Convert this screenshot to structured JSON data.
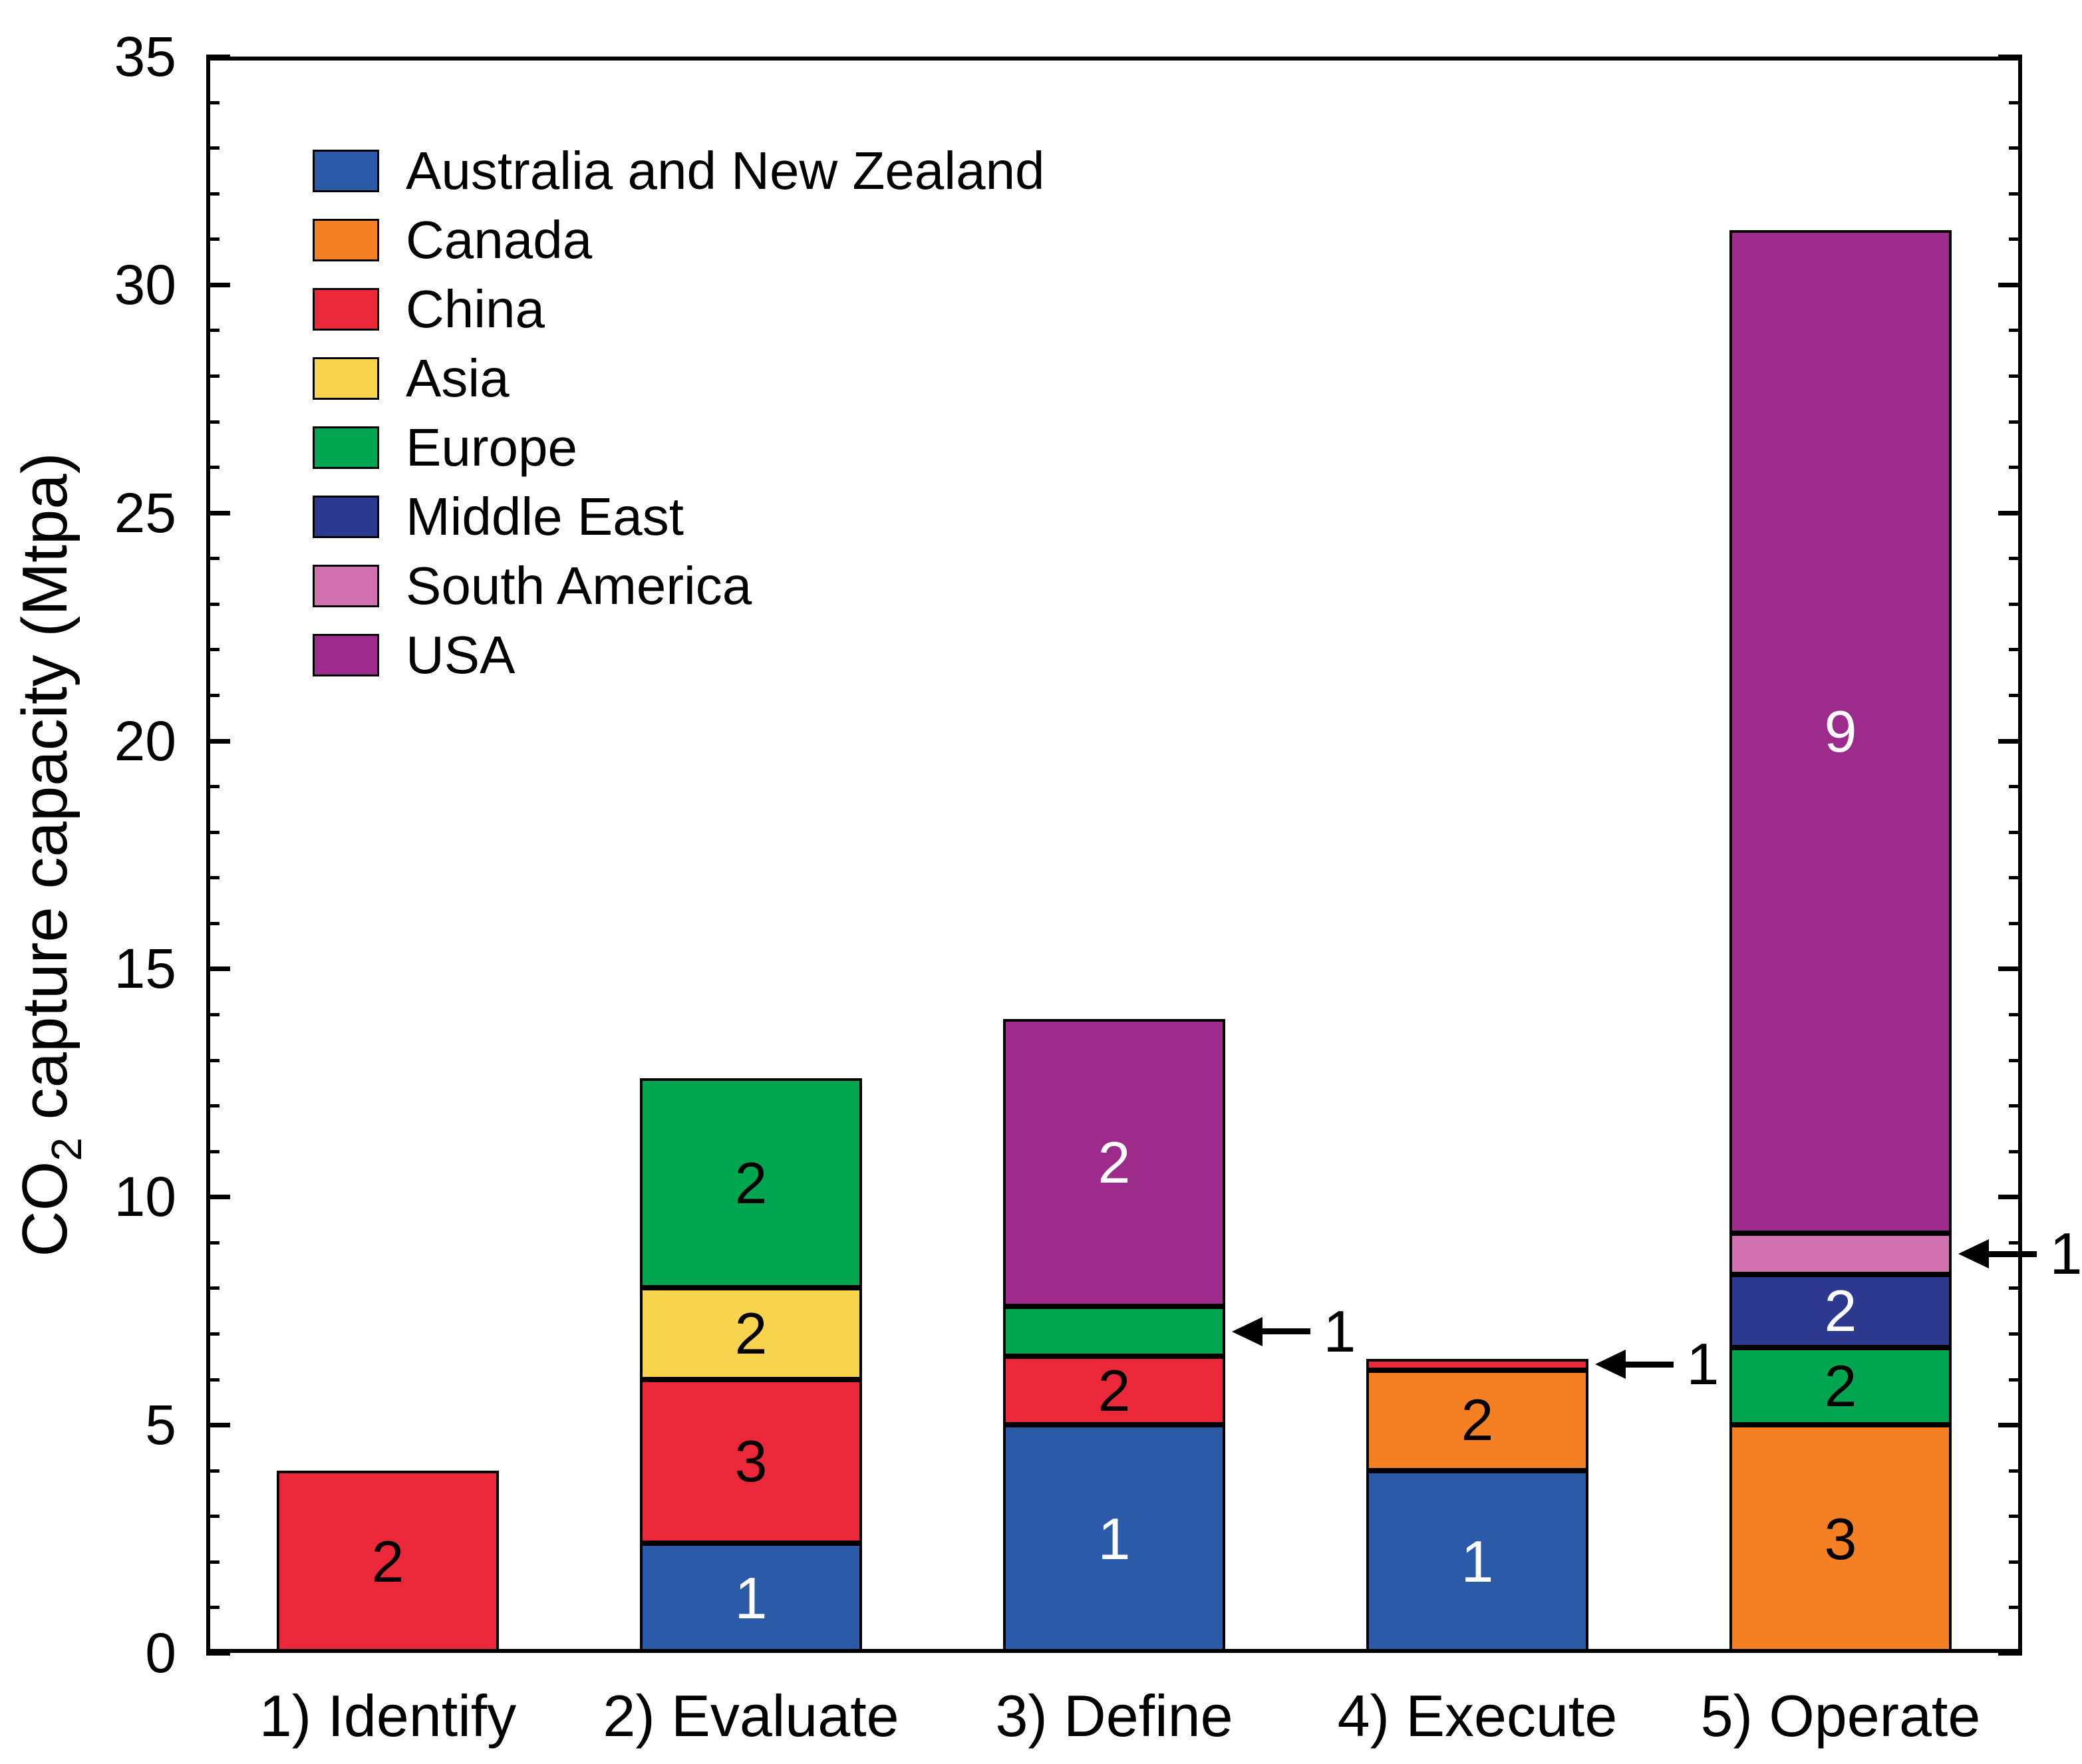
{
  "figure": {
    "background": "#ffffff",
    "axis_color": "#000000",
    "ylabel": {
      "pre": "CO",
      "sub": "2",
      "post": " capture capacity (Mtpa)"
    }
  },
  "chart_data": {
    "type": "bar",
    "stacked": true,
    "title": "",
    "xlabel": "",
    "ylabel": "CO2 capture capacity (Mtpa)",
    "ylim": [
      0,
      35
    ],
    "yticks": [
      0,
      5,
      10,
      15,
      20,
      25,
      30,
      35
    ],
    "minor_tick_step": 1,
    "grid": false,
    "legend_position": "top-left-inside",
    "categories": [
      "1) Identify",
      "2) Evaluate",
      "3) Define",
      "4) Execute",
      "5) Operate"
    ],
    "series": [
      {
        "name": "Australia and New Zealand",
        "color": "#2B5BA8",
        "label_color": "#ffffff",
        "values": [
          0,
          2.4,
          5.0,
          4.0,
          0
        ],
        "counts": [
          null,
          1,
          1,
          1,
          null
        ]
      },
      {
        "name": "Canada",
        "color": "#F58023",
        "label_color": "#000000",
        "values": [
          0,
          0,
          0,
          2.2,
          5.0
        ],
        "counts": [
          null,
          null,
          null,
          2,
          3
        ]
      },
      {
        "name": "China",
        "color": "#EA2839",
        "label_color": "#000000",
        "values": [
          4.0,
          3.6,
          1.5,
          0.25,
          0
        ],
        "counts": [
          2,
          3,
          2,
          1,
          null
        ]
      },
      {
        "name": "Asia",
        "color": "#F8D44C",
        "label_color": "#000000",
        "values": [
          0,
          2.0,
          0,
          0,
          0
        ],
        "counts": [
          null,
          2,
          null,
          null,
          null
        ]
      },
      {
        "name": "Europe",
        "color": "#00A550",
        "label_color": "#000000",
        "values": [
          0,
          4.6,
          1.1,
          0,
          1.7
        ],
        "counts": [
          null,
          2,
          1,
          null,
          2
        ]
      },
      {
        "name": "Middle East",
        "color": "#2B3A8F",
        "label_color": "#ffffff",
        "values": [
          0,
          0,
          0,
          0,
          1.6
        ],
        "counts": [
          null,
          null,
          null,
          null,
          2
        ]
      },
      {
        "name": "South America",
        "color": "#D070AE",
        "label_color": "#000000",
        "values": [
          0,
          0,
          0,
          0,
          0.9
        ],
        "counts": [
          null,
          null,
          null,
          null,
          1
        ]
      },
      {
        "name": "USA",
        "color": "#9C2B8C",
        "label_color": "#ffffff",
        "values": [
          0,
          0,
          6.3,
          0,
          22.0
        ],
        "counts": [
          null,
          null,
          2,
          null,
          9
        ]
      }
    ],
    "annotations": [
      {
        "category_index": 2,
        "series": "Europe",
        "label": "1"
      },
      {
        "category_index": 3,
        "series": "China",
        "label": "1"
      },
      {
        "category_index": 4,
        "series": "South America",
        "label": "1"
      }
    ]
  }
}
